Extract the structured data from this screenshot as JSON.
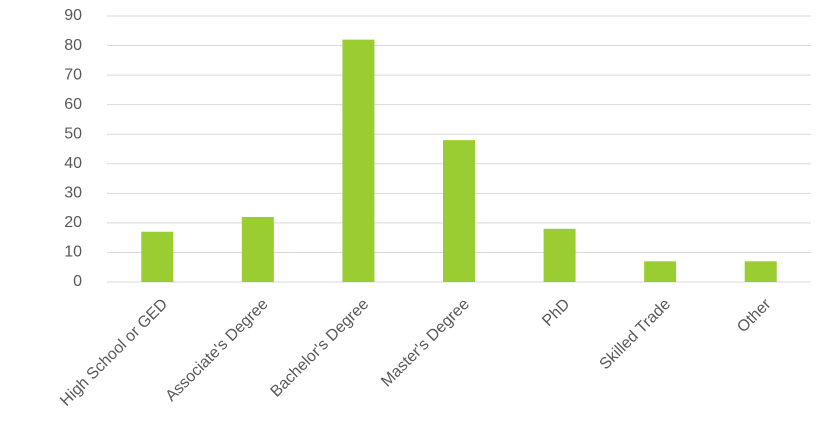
{
  "chart_data": {
    "type": "bar",
    "categories": [
      "High School or GED",
      "Associate's Degree",
      "Bachelor's Degree",
      "Master's Degree",
      "PhD",
      "Skilled Trade",
      "Other"
    ],
    "values": [
      17,
      22,
      82,
      48,
      18,
      7,
      7
    ],
    "color": "#9acd32",
    "ylim": [
      0,
      90
    ],
    "yticks": [
      0,
      10,
      20,
      30,
      40,
      50,
      60,
      70,
      80,
      90
    ],
    "grid": true
  }
}
